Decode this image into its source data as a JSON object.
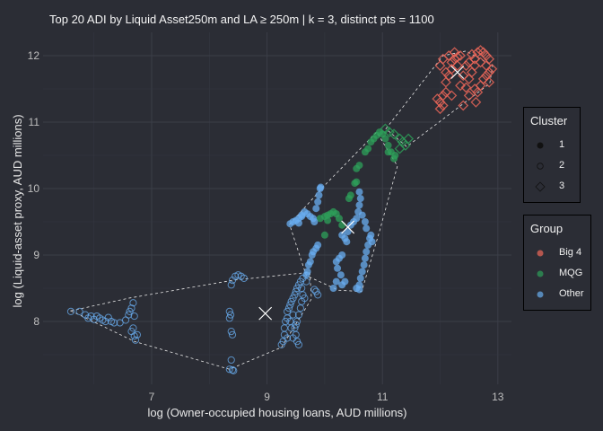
{
  "chart_data": {
    "type": "scatter",
    "title": "Top 20 ADI by Liquid Asset250m and LA ≥ 250m | k = 3, distinct pts = 1100",
    "xlabel": "log (Owner-occupied housing loans, AUD millions)",
    "ylabel": "log (Liquid-asset proxy, AUD millions)",
    "xlim": [
      5.1,
      13.2
    ],
    "ylim": [
      7.0,
      12.35
    ],
    "x_ticks": [
      "7",
      "9",
      "11",
      "13"
    ],
    "y_ticks": [
      "8",
      "9",
      "10",
      "11",
      "12"
    ],
    "grid": true,
    "legend_placement": "right",
    "legends": {
      "cluster": {
        "title": "Cluster",
        "items": [
          {
            "label": "1",
            "shape": "filled-circle"
          },
          {
            "label": "2",
            "shape": "open-circle"
          },
          {
            "label": "3",
            "shape": "open-diamond"
          }
        ]
      },
      "group": {
        "title": "Group",
        "items": [
          {
            "label": "Big 4",
            "color": "#f0685a"
          },
          {
            "label": "MQG",
            "color": "#2ea05a"
          },
          {
            "label": "Other",
            "color": "#6aaef0"
          }
        ]
      }
    },
    "centroids": [
      {
        "cluster": "1",
        "x": 10.4,
        "y": 9.42
      },
      {
        "cluster": "2",
        "x": 8.97,
        "y": 8.12
      },
      {
        "cluster": "3",
        "x": 12.3,
        "y": 11.75
      }
    ],
    "hulls": [
      {
        "cluster": "1",
        "points": [
          [
            9.39,
            9.46
          ],
          [
            10.0,
            10.05
          ],
          [
            10.9,
            10.85
          ],
          [
            11.26,
            10.34
          ],
          [
            10.95,
            9.36
          ],
          [
            10.64,
            8.45
          ],
          [
            10.24,
            8.47
          ],
          [
            9.68,
            8.69
          ]
        ]
      },
      {
        "cluster": "2",
        "points": [
          [
            5.6,
            8.16
          ],
          [
            6.7,
            7.7
          ],
          [
            8.35,
            7.28
          ],
          [
            9.25,
            7.61
          ],
          [
            9.77,
            8.34
          ],
          [
            9.74,
            8.74
          ],
          [
            8.41,
            8.62
          ],
          [
            6.6,
            8.35
          ]
        ]
      },
      {
        "cluster": "3",
        "points": [
          [
            11.06,
            10.9
          ],
          [
            12.05,
            12.0
          ],
          [
            12.45,
            12.07
          ],
          [
            12.91,
            11.85
          ],
          [
            12.86,
            11.58
          ],
          [
            11.42,
            10.63
          ]
        ]
      }
    ],
    "series": [
      {
        "cluster": "3",
        "group": "Big 4",
        "points": [
          [
            12.0,
            11.3
          ],
          [
            12.05,
            11.4
          ],
          [
            12.1,
            11.45
          ],
          [
            11.95,
            11.35
          ],
          [
            12.1,
            11.6
          ],
          [
            12.15,
            11.7
          ],
          [
            12.2,
            11.8
          ],
          [
            12.1,
            11.75
          ],
          [
            12.2,
            11.9
          ],
          [
            12.25,
            11.95
          ],
          [
            12.3,
            11.98
          ],
          [
            12.35,
            12.0
          ],
          [
            12.3,
            11.85
          ],
          [
            12.4,
            11.7
          ],
          [
            12.35,
            11.55
          ],
          [
            12.45,
            11.52
          ],
          [
            12.5,
            11.65
          ],
          [
            12.55,
            11.75
          ],
          [
            12.6,
            11.5
          ],
          [
            12.65,
            11.45
          ],
          [
            12.7,
            11.55
          ],
          [
            12.75,
            11.65
          ],
          [
            12.8,
            11.7
          ],
          [
            12.85,
            11.75
          ],
          [
            12.6,
            11.95
          ],
          [
            12.65,
            12.05
          ],
          [
            12.7,
            12.08
          ],
          [
            12.75,
            12.05
          ],
          [
            12.8,
            12.0
          ],
          [
            12.85,
            11.95
          ],
          [
            12.55,
            12.02
          ],
          [
            12.5,
            11.9
          ],
          [
            12.45,
            11.85
          ],
          [
            12.6,
            11.85
          ],
          [
            12.7,
            11.9
          ],
          [
            12.8,
            11.85
          ],
          [
            12.9,
            11.8
          ],
          [
            12.85,
            11.6
          ],
          [
            12.2,
            11.4
          ],
          [
            12.0,
            11.2
          ],
          [
            12.05,
            11.25
          ],
          [
            12.4,
            11.25
          ],
          [
            12.5,
            11.4
          ],
          [
            12.62,
            11.3
          ],
          [
            12.0,
            11.85
          ],
          [
            12.05,
            11.95
          ],
          [
            12.15,
            12.0
          ],
          [
            12.25,
            12.05
          ]
        ]
      },
      {
        "cluster": "3",
        "group": "MQG",
        "points": [
          [
            11.05,
            10.9
          ],
          [
            11.12,
            10.85
          ],
          [
            11.2,
            10.82
          ],
          [
            11.3,
            10.75
          ],
          [
            11.35,
            10.7
          ],
          [
            11.4,
            10.65
          ],
          [
            11.45,
            10.75
          ],
          [
            11.3,
            10.6
          ]
        ]
      },
      {
        "cluster": "1",
        "group": "MQG",
        "points": [
          [
            10.7,
            10.55
          ],
          [
            10.75,
            10.6
          ],
          [
            10.8,
            10.7
          ],
          [
            10.85,
            10.75
          ],
          [
            10.9,
            10.8
          ],
          [
            10.95,
            10.85
          ],
          [
            11.0,
            10.82
          ],
          [
            11.05,
            10.75
          ],
          [
            11.1,
            10.65
          ],
          [
            11.15,
            10.55
          ],
          [
            11.2,
            10.45
          ],
          [
            11.22,
            10.5
          ],
          [
            11.1,
            10.55
          ],
          [
            10.55,
            10.3
          ],
          [
            10.6,
            10.35
          ],
          [
            10.55,
            10.1
          ],
          [
            10.52,
            10.08
          ],
          [
            10.45,
            9.9
          ],
          [
            10.42,
            9.85
          ],
          [
            10.0,
            9.58
          ],
          [
            10.05,
            9.6
          ],
          [
            10.1,
            9.62
          ],
          [
            10.15,
            9.65
          ],
          [
            10.2,
            9.62
          ],
          [
            10.25,
            9.55
          ],
          [
            10.3,
            9.45
          ],
          [
            10.05,
            9.52
          ],
          [
            10.0,
            9.3
          ],
          [
            9.92,
            9.55
          ]
        ]
      },
      {
        "cluster": "1",
        "group": "Other",
        "points": [
          [
            9.4,
            9.47
          ],
          [
            9.45,
            9.5
          ],
          [
            9.5,
            9.52
          ],
          [
            9.55,
            9.55
          ],
          [
            9.6,
            9.6
          ],
          [
            9.65,
            9.65
          ],
          [
            9.7,
            9.62
          ],
          [
            9.75,
            9.58
          ],
          [
            9.8,
            9.55
          ],
          [
            9.85,
            9.7
          ],
          [
            9.88,
            9.8
          ],
          [
            9.9,
            9.9
          ],
          [
            9.92,
            10.0
          ],
          [
            9.93,
            10.02
          ],
          [
            9.6,
            9.58
          ],
          [
            9.55,
            9.48
          ],
          [
            9.82,
            9.5
          ],
          [
            9.7,
            8.75
          ],
          [
            9.72,
            8.85
          ],
          [
            9.75,
            8.9
          ],
          [
            9.78,
            9.0
          ],
          [
            9.8,
            9.05
          ],
          [
            9.85,
            9.1
          ],
          [
            9.88,
            9.15
          ],
          [
            9.68,
            8.7
          ],
          [
            10.3,
            9.3
          ],
          [
            10.35,
            9.25
          ],
          [
            10.4,
            9.35
          ],
          [
            10.45,
            9.45
          ],
          [
            10.5,
            9.5
          ],
          [
            10.55,
            9.55
          ],
          [
            10.58,
            9.65
          ],
          [
            10.6,
            9.75
          ],
          [
            10.62,
            9.85
          ],
          [
            10.6,
            9.95
          ],
          [
            10.65,
            9.6
          ],
          [
            10.7,
            9.5
          ],
          [
            10.72,
            9.4
          ],
          [
            10.38,
            9.2
          ],
          [
            10.2,
            8.9
          ],
          [
            10.25,
            8.95
          ],
          [
            10.3,
            9.0
          ],
          [
            10.22,
            8.8
          ],
          [
            10.28,
            8.7
          ],
          [
            10.35,
            8.6
          ],
          [
            10.3,
            8.55
          ],
          [
            10.2,
            8.6
          ],
          [
            10.15,
            8.5
          ],
          [
            10.55,
            8.5
          ],
          [
            10.6,
            8.55
          ],
          [
            10.62,
            8.65
          ],
          [
            10.65,
            8.75
          ],
          [
            10.68,
            8.85
          ],
          [
            10.7,
            8.95
          ],
          [
            10.72,
            9.05
          ],
          [
            10.75,
            9.15
          ],
          [
            10.78,
            9.25
          ],
          [
            10.8,
            9.3
          ],
          [
            10.82,
            9.2
          ],
          [
            10.6,
            8.48
          ]
        ]
      },
      {
        "cluster": "2",
        "group": "Other",
        "points": [
          [
            5.6,
            8.15
          ],
          [
            5.75,
            8.15
          ],
          [
            5.85,
            8.1
          ],
          [
            5.9,
            8.05
          ],
          [
            5.95,
            8.08
          ],
          [
            6.0,
            8.03
          ],
          [
            6.05,
            8.08
          ],
          [
            6.1,
            8.05
          ],
          [
            6.15,
            8.02
          ],
          [
            6.2,
            8.0
          ],
          [
            6.25,
            8.06
          ],
          [
            6.3,
            8.0
          ],
          [
            6.35,
            7.98
          ],
          [
            6.45,
            7.98
          ],
          [
            6.55,
            8.02
          ],
          [
            6.6,
            8.1
          ],
          [
            6.65,
            8.2
          ],
          [
            6.68,
            8.28
          ],
          [
            6.62,
            8.15
          ],
          [
            6.7,
            8.08
          ],
          [
            6.65,
            7.85
          ],
          [
            6.7,
            7.78
          ],
          [
            6.72,
            7.72
          ],
          [
            6.68,
            7.9
          ],
          [
            6.75,
            7.8
          ],
          [
            8.35,
            8.15
          ],
          [
            8.37,
            8.1
          ],
          [
            8.35,
            8.05
          ],
          [
            8.38,
            7.85
          ],
          [
            8.4,
            7.8
          ],
          [
            8.38,
            7.42
          ],
          [
            8.35,
            7.28
          ],
          [
            8.4,
            7.27
          ],
          [
            8.42,
            7.26
          ],
          [
            8.38,
            8.55
          ],
          [
            8.4,
            8.62
          ],
          [
            8.45,
            8.68
          ],
          [
            8.5,
            8.7
          ],
          [
            8.55,
            8.68
          ],
          [
            8.6,
            8.65
          ],
          [
            9.25,
            7.65
          ],
          [
            9.28,
            7.7
          ],
          [
            9.3,
            7.8
          ],
          [
            9.3,
            7.9
          ],
          [
            9.32,
            8.0
          ],
          [
            9.35,
            8.05
          ],
          [
            9.35,
            8.15
          ],
          [
            9.38,
            8.2
          ],
          [
            9.4,
            8.25
          ],
          [
            9.42,
            8.3
          ],
          [
            9.45,
            8.35
          ],
          [
            9.48,
            8.4
          ],
          [
            9.5,
            8.45
          ],
          [
            9.52,
            8.5
          ],
          [
            9.55,
            8.55
          ],
          [
            9.58,
            8.6
          ],
          [
            9.6,
            8.5
          ],
          [
            9.62,
            8.4
          ],
          [
            9.6,
            8.3
          ],
          [
            9.58,
            8.2
          ],
          [
            9.55,
            8.1
          ],
          [
            9.52,
            8.0
          ],
          [
            9.5,
            7.95
          ],
          [
            9.48,
            7.9
          ],
          [
            9.5,
            7.8
          ],
          [
            9.52,
            7.7
          ],
          [
            9.55,
            7.65
          ],
          [
            9.45,
            8.1
          ],
          [
            9.4,
            8.0
          ],
          [
            9.42,
            7.9
          ],
          [
            9.65,
            8.35
          ],
          [
            9.68,
            8.6
          ],
          [
            9.62,
            8.65
          ],
          [
            9.45,
            7.75
          ],
          [
            9.35,
            7.75
          ],
          [
            9.85,
            8.45
          ],
          [
            9.88,
            8.4
          ],
          [
            9.82,
            8.48
          ]
        ]
      }
    ]
  }
}
